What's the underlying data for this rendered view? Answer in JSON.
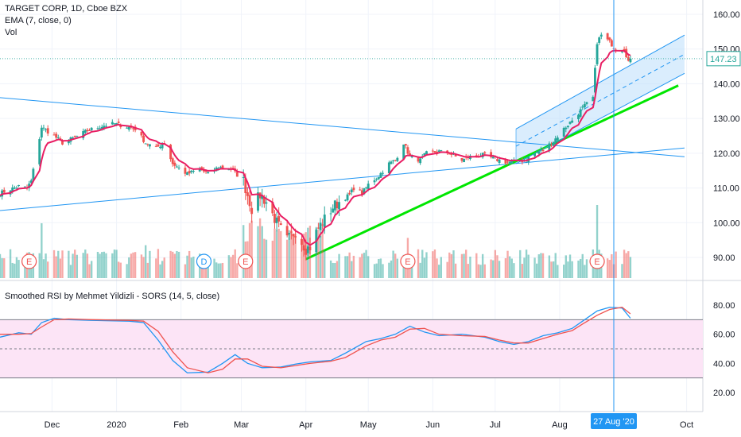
{
  "header": {
    "symbol_title": "TARGET CORP, 1D, Cboe BZX",
    "ema_label": "EMA (7, close, 0)",
    "vol_label": "Vol"
  },
  "rsi_panel": {
    "title": "Smoothed RSI by Mehmet Yildizli - SORS (14, 5, close)"
  },
  "colors": {
    "up": "#26a69a",
    "down": "#ef5350",
    "ema": "#e91e63",
    "trendline": "#2196f3",
    "support": "#00e600",
    "channel_fill": "#bbdefb",
    "rsi_band": "#fce4f6",
    "crosshair": "#2196f3",
    "current_price_bg": "#ffffff",
    "event_badge": "#ef5350",
    "dividend_badge": "#2196f3"
  },
  "chart_data": [
    {
      "type": "candlestick",
      "title": "TARGET CORP, 1D, Cboe BZX",
      "ylim": [
        85,
        165
      ],
      "y_ticks": [
        "160.00",
        "150.00",
        "140.00",
        "130.00",
        "120.00",
        "110.00",
        "100.00",
        "90.00"
      ],
      "x_ticks": [
        {
          "label": "Dec",
          "date": "2019-12-01"
        },
        {
          "label": "2020",
          "date": "2020-01-01"
        },
        {
          "label": "Feb",
          "date": "2020-02-01"
        },
        {
          "label": "Mar",
          "date": "2020-03-01"
        },
        {
          "label": "Apr",
          "date": "2020-04-01"
        },
        {
          "label": "May",
          "date": "2020-05-01"
        },
        {
          "label": "Jun",
          "date": "2020-06-01"
        },
        {
          "label": "Jul",
          "date": "2020-07-01"
        },
        {
          "label": "Aug",
          "date": "2020-08-01"
        },
        {
          "label": "Oct",
          "date": "2020-10-01"
        }
      ],
      "close_anchors": [
        [
          "2019-11-06",
          108.5
        ],
        [
          "2019-11-15",
          110.5
        ],
        [
          "2019-11-19",
          110.0
        ],
        [
          "2019-11-21",
          112.0
        ],
        [
          "2019-11-26",
          127.5
        ],
        [
          "2019-12-02",
          125.0
        ],
        [
          "2019-12-06",
          123.0
        ],
        [
          "2019-12-12",
          124.5
        ],
        [
          "2019-12-18",
          126.5
        ],
        [
          "2019-12-26",
          128.0
        ],
        [
          "2019-12-31",
          128.5
        ],
        [
          "2020-01-07",
          127.5
        ],
        [
          "2020-01-10",
          127.0
        ],
        [
          "2020-01-15",
          123.0
        ],
        [
          "2020-01-20",
          121.5
        ],
        [
          "2020-01-24",
          123.0
        ],
        [
          "2020-01-28",
          117.0
        ],
        [
          "2020-02-04",
          114.0
        ],
        [
          "2020-02-10",
          115.5
        ],
        [
          "2020-02-14",
          114.0
        ],
        [
          "2020-02-19",
          116.0
        ],
        [
          "2020-02-25",
          115.5
        ],
        [
          "2020-03-02",
          112.0
        ],
        [
          "2020-03-06",
          104.0
        ],
        [
          "2020-03-10",
          108.0
        ],
        [
          "2020-03-13",
          106.0
        ],
        [
          "2020-03-18",
          100.0
        ],
        [
          "2020-03-23",
          95.0
        ],
        [
          "2020-03-27",
          97.5
        ],
        [
          "2020-04-01",
          92.5
        ],
        [
          "2020-04-03",
          93.0
        ],
        [
          "2020-04-07",
          98.5
        ],
        [
          "2020-04-10",
          101.0
        ],
        [
          "2020-04-14",
          104.5
        ],
        [
          "2020-04-17",
          106.0
        ],
        [
          "2020-04-22",
          108.0
        ],
        [
          "2020-04-24",
          110.0
        ],
        [
          "2020-04-28",
          108.5
        ],
        [
          "2020-05-01",
          111.0
        ],
        [
          "2020-05-06",
          113.5
        ],
        [
          "2020-05-11",
          117.0
        ],
        [
          "2020-05-14",
          118.0
        ],
        [
          "2020-05-18",
          123.0
        ],
        [
          "2020-05-21",
          119.0
        ],
        [
          "2020-05-26",
          118.0
        ],
        [
          "2020-05-29",
          120.0
        ],
        [
          "2020-06-04",
          120.5
        ],
        [
          "2020-06-09",
          120.0
        ],
        [
          "2020-06-15",
          118.0
        ],
        [
          "2020-06-19",
          119.0
        ],
        [
          "2020-06-25",
          119.5
        ],
        [
          "2020-06-30",
          118.5
        ],
        [
          "2020-07-06",
          117.5
        ],
        [
          "2020-07-10",
          117.5
        ],
        [
          "2020-07-15",
          118.0
        ],
        [
          "2020-07-20",
          120.0
        ],
        [
          "2020-07-24",
          121.0
        ],
        [
          "2020-07-29",
          123.5
        ],
        [
          "2020-08-03",
          127.0
        ],
        [
          "2020-08-07",
          129.5
        ],
        [
          "2020-08-12",
          133.0
        ],
        [
          "2020-08-17",
          136.0
        ],
        [
          "2020-08-19",
          152.0
        ],
        [
          "2020-08-21",
          154.0
        ],
        [
          "2020-08-25",
          152.0
        ],
        [
          "2020-08-28",
          150.0
        ],
        [
          "2020-09-01",
          150.0
        ],
        [
          "2020-09-03",
          146.5
        ],
        [
          "2020-09-04",
          147.23
        ]
      ],
      "last_price": "147.23",
      "ema": {
        "name": "EMA (7, close, 0)",
        "period": 7
      },
      "trendlines": [
        {
          "name": "falling-resistance",
          "from": [
            "2019-11-06",
            136.0
          ],
          "to": [
            "2020-09-30",
            119.0
          ]
        },
        {
          "name": "rising-support-long",
          "from": [
            "2019-11-06",
            103.5
          ],
          "to": [
            "2020-09-30",
            121.5
          ]
        },
        {
          "name": "rising-support-green",
          "from": [
            "2020-04-01",
            89.5
          ],
          "to": [
            "2020-09-27",
            139.5
          ]
        },
        {
          "name": "channel-upper",
          "from": [
            "2020-07-11",
            127.0
          ],
          "to": [
            "2020-09-30",
            154.0
          ]
        },
        {
          "name": "channel-mid",
          "from": [
            "2020-07-11",
            122.0
          ],
          "to": [
            "2020-09-30",
            148.5
          ]
        },
        {
          "name": "channel-lower",
          "from": [
            "2020-07-11",
            117.0
          ],
          "to": [
            "2020-09-30",
            143.0
          ]
        }
      ],
      "events": [
        {
          "kind": "earnings",
          "label": "E",
          "date": "2019-11-20"
        },
        {
          "kind": "dividend",
          "label": "D",
          "date": "2020-02-12"
        },
        {
          "kind": "earnings",
          "label": "E",
          "date": "2020-03-03"
        },
        {
          "kind": "earnings",
          "label": "E",
          "date": "2020-05-20"
        },
        {
          "kind": "earnings",
          "label": "E",
          "date": "2020-08-19"
        }
      ],
      "crosshair_date_label": "27 Aug '20",
      "crosshair_date": "2020-08-27"
    },
    {
      "type": "line",
      "title": "Smoothed RSI by Mehmet Yildizli - SORS (14, 5, close)",
      "ylim": [
        10,
        90
      ],
      "y_ticks": [
        "80.00",
        "60.00",
        "40.00",
        "20.00"
      ],
      "bands": {
        "upper": 70,
        "middle": 50,
        "lower": 30
      },
      "series": [
        {
          "color": "#2196f3",
          "points": [
            [
              "2019-11-06",
              58
            ],
            [
              "2019-11-15",
              61
            ],
            [
              "2019-11-21",
              60
            ],
            [
              "2019-11-26",
              68
            ],
            [
              "2019-12-02",
              71
            ],
            [
              "2019-12-09",
              70
            ],
            [
              "2019-12-20",
              69.5
            ],
            [
              "2020-01-07",
              69
            ],
            [
              "2020-01-14",
              68
            ],
            [
              "2020-01-21",
              56
            ],
            [
              "2020-01-28",
              42
            ],
            [
              "2020-02-04",
              33.5
            ],
            [
              "2020-02-14",
              34
            ],
            [
              "2020-02-21",
              40
            ],
            [
              "2020-02-27",
              46
            ],
            [
              "2020-03-04",
              40
            ],
            [
              "2020-03-11",
              37
            ],
            [
              "2020-03-20",
              37.5
            ],
            [
              "2020-03-27",
              39.5
            ],
            [
              "2020-04-03",
              41
            ],
            [
              "2020-04-13",
              42
            ],
            [
              "2020-04-20",
              47
            ],
            [
              "2020-04-30",
              55
            ],
            [
              "2020-05-07",
              57
            ],
            [
              "2020-05-14",
              60
            ],
            [
              "2020-05-21",
              65.5
            ],
            [
              "2020-05-28",
              61.5
            ],
            [
              "2020-06-04",
              59
            ],
            [
              "2020-06-15",
              60
            ],
            [
              "2020-06-26",
              58
            ],
            [
              "2020-07-03",
              55
            ],
            [
              "2020-07-10",
              53
            ],
            [
              "2020-07-17",
              55
            ],
            [
              "2020-07-24",
              59
            ],
            [
              "2020-07-31",
              61
            ],
            [
              "2020-08-07",
              64
            ],
            [
              "2020-08-12",
              69
            ],
            [
              "2020-08-19",
              76
            ],
            [
              "2020-08-25",
              78.5
            ],
            [
              "2020-08-31",
              78
            ],
            [
              "2020-09-04",
              71
            ]
          ]
        },
        {
          "color": "#ef5350",
          "points": [
            [
              "2019-11-06",
              60
            ],
            [
              "2019-11-15",
              60
            ],
            [
              "2019-11-21",
              60.5
            ],
            [
              "2019-11-26",
              65
            ],
            [
              "2019-12-02",
              70
            ],
            [
              "2019-12-09",
              70.5
            ],
            [
              "2019-12-20",
              70
            ],
            [
              "2020-01-07",
              69.5
            ],
            [
              "2020-01-14",
              69
            ],
            [
              "2020-01-21",
              62
            ],
            [
              "2020-01-28",
              48
            ],
            [
              "2020-02-04",
              37
            ],
            [
              "2020-02-14",
              33.5
            ],
            [
              "2020-02-21",
              36
            ],
            [
              "2020-02-27",
              43
            ],
            [
              "2020-03-04",
              43
            ],
            [
              "2020-03-11",
              38
            ],
            [
              "2020-03-20",
              37
            ],
            [
              "2020-03-27",
              38.5
            ],
            [
              "2020-04-03",
              40
            ],
            [
              "2020-04-13",
              41.5
            ],
            [
              "2020-04-20",
              44
            ],
            [
              "2020-04-30",
              52
            ],
            [
              "2020-05-07",
              56
            ],
            [
              "2020-05-14",
              58
            ],
            [
              "2020-05-21",
              63.5
            ],
            [
              "2020-05-28",
              64
            ],
            [
              "2020-06-04",
              60
            ],
            [
              "2020-06-15",
              59
            ],
            [
              "2020-06-26",
              58.5
            ],
            [
              "2020-07-03",
              56
            ],
            [
              "2020-07-10",
              54
            ],
            [
              "2020-07-17",
              54
            ],
            [
              "2020-07-24",
              57
            ],
            [
              "2020-07-31",
              60
            ],
            [
              "2020-08-07",
              62.5
            ],
            [
              "2020-08-12",
              67
            ],
            [
              "2020-08-19",
              73
            ],
            [
              "2020-08-25",
              77
            ],
            [
              "2020-08-31",
              78.5
            ],
            [
              "2020-09-04",
              74
            ]
          ]
        }
      ]
    }
  ]
}
